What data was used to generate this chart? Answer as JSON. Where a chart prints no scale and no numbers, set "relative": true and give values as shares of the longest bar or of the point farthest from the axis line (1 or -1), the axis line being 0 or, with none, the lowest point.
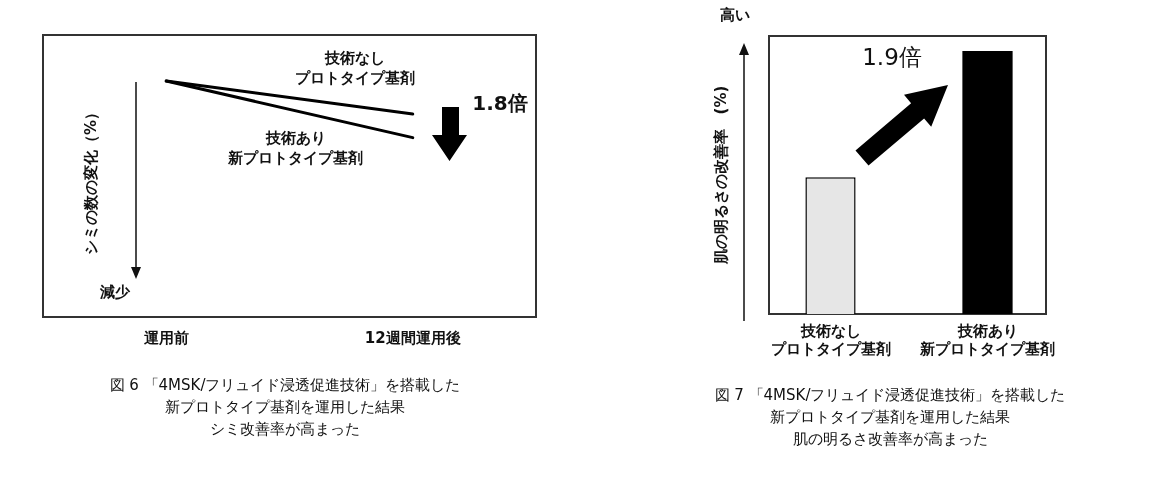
{
  "chart_data": [
    {
      "type": "line",
      "relative": true,
      "categories": [
        "運用前",
        "12週間運用後"
      ],
      "ylabel": "シミの数の変化（%）",
      "series": [
        {
          "name": "技術なしプロトタイプ基剤",
          "color": "#000000",
          "values": [
            1,
            0.86
          ]
        },
        {
          "name": "技術あり新プロトタイプ基剤",
          "color": "#000000",
          "values": [
            1,
            0.76
          ]
        }
      ],
      "annotations": [
        "1.8倍",
        "減少",
        "図 6 「4MSK/フリュイド浸透促進技術」を搭載した新プロトタイプ基剤を運用した結果シミ改善率が高まった"
      ]
    },
    {
      "type": "bar",
      "relative": true,
      "categories": [
        "技術なしプロトタイプ基剤",
        "技術あり新プロトタイプ基剤"
      ],
      "ylabel": "肌の明るさの改善率　(%)",
      "values": [
        0.52,
        1
      ],
      "colors": [
        "#e6e6e6",
        "#000000"
      ],
      "annotations": [
        "1.9倍",
        "高い",
        "図 7 「4MSK/フリュイド浸透促進技術」を搭載した新プロトタイプ基剤を運用した結果肌の明るさ改善率が高まった"
      ]
    }
  ]
}
